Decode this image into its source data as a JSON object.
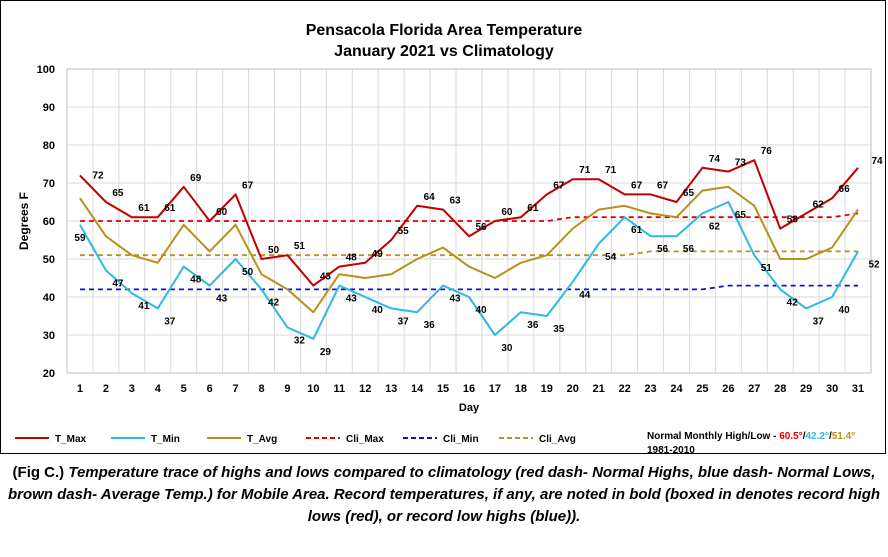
{
  "chart_data": {
    "type": "line",
    "title": [
      "Pensacola Florida Area Temperature",
      "January 2021 vs Climatology"
    ],
    "xlabel": "Day",
    "ylabel": "Degrees F",
    "ylim": [
      20,
      100
    ],
    "yticks": [
      20,
      30,
      40,
      50,
      60,
      70,
      80,
      90,
      100
    ],
    "x": [
      1,
      2,
      3,
      4,
      5,
      6,
      7,
      8,
      9,
      10,
      11,
      12,
      13,
      14,
      15,
      16,
      17,
      18,
      19,
      20,
      21,
      22,
      23,
      24,
      25,
      26,
      27,
      28,
      29,
      30,
      31
    ],
    "grid": true,
    "legend_position": "bottom",
    "series": [
      {
        "name": "T_Max",
        "color": "#C00000",
        "style": "solid",
        "values": [
          72,
          65,
          61,
          61,
          69,
          60,
          67,
          50,
          51,
          43,
          48,
          49,
          55,
          64,
          63,
          56,
          60,
          61,
          67,
          71,
          71,
          67,
          67,
          65,
          74,
          73,
          76,
          58,
          62,
          66,
          74
        ],
        "labeled": true
      },
      {
        "name": "T_Min",
        "color": "#2EB8E6",
        "style": "solid",
        "values": [
          59,
          47,
          41,
          37,
          48,
          43,
          50,
          42,
          32,
          29,
          43,
          40,
          37,
          36,
          43,
          40,
          30,
          36,
          35,
          44,
          54,
          61,
          56,
          56,
          62,
          65,
          51,
          42,
          37,
          40,
          52
        ],
        "labeled": true
      },
      {
        "name": "T_Avg",
        "color": "#B8901A",
        "style": "solid",
        "values": [
          66,
          56,
          51,
          49,
          59,
          52,
          59,
          46,
          42,
          36,
          46,
          45,
          46,
          50,
          53,
          48,
          45,
          49,
          51,
          58,
          63,
          64,
          62,
          61,
          68,
          69,
          64,
          50,
          50,
          53,
          63
        ],
        "labeled": false
      },
      {
        "name": "Cli_Max",
        "color": "#E00000",
        "style": "dashed",
        "values": [
          60,
          60,
          60,
          60,
          60,
          60,
          60,
          60,
          60,
          60,
          60,
          60,
          60,
          60,
          60,
          60,
          60,
          60,
          60,
          61,
          61,
          61,
          61,
          61,
          61,
          61,
          61,
          61,
          61,
          61,
          62
        ],
        "labeled": false
      },
      {
        "name": "Cli_Min",
        "color": "#1010D0",
        "style": "dashed",
        "values": [
          42,
          42,
          42,
          42,
          42,
          42,
          42,
          42,
          42,
          42,
          42,
          42,
          42,
          42,
          42,
          42,
          42,
          42,
          42,
          42,
          42,
          42,
          42,
          42,
          42,
          43,
          43,
          43,
          43,
          43,
          43
        ],
        "labeled": false
      },
      {
        "name": "Cli_Avg",
        "color": "#B8901A",
        "style": "dashed",
        "values": [
          51,
          51,
          51,
          51,
          51,
          51,
          51,
          51,
          51,
          51,
          51,
          51,
          51,
          51,
          51,
          51,
          51,
          51,
          51,
          51,
          51,
          51,
          52,
          52,
          52,
          52,
          52,
          52,
          52,
          52,
          52
        ],
        "labeled": false
      }
    ],
    "normals_note": {
      "label": "Normal Monthly High/Low - ",
      "high": "60.5°",
      "low": "42.2°",
      "avg": "51.4°",
      "sep": "/",
      "period": "1981-2010",
      "high_color": "#E00000",
      "low_color": "#2EB8E6",
      "avg_color": "#B8901A"
    }
  },
  "caption": {
    "lead": "(Fig C.) ",
    "body": "Temperature trace of highs and lows compared to climatology (red dash- Normal Highs, blue dash- Normal Lows, brown dash- Average Temp.) for Mobile Area. Record temperatures, if any, are noted in bold (boxed in denotes record high lows (red), or record low highs (blue))."
  }
}
